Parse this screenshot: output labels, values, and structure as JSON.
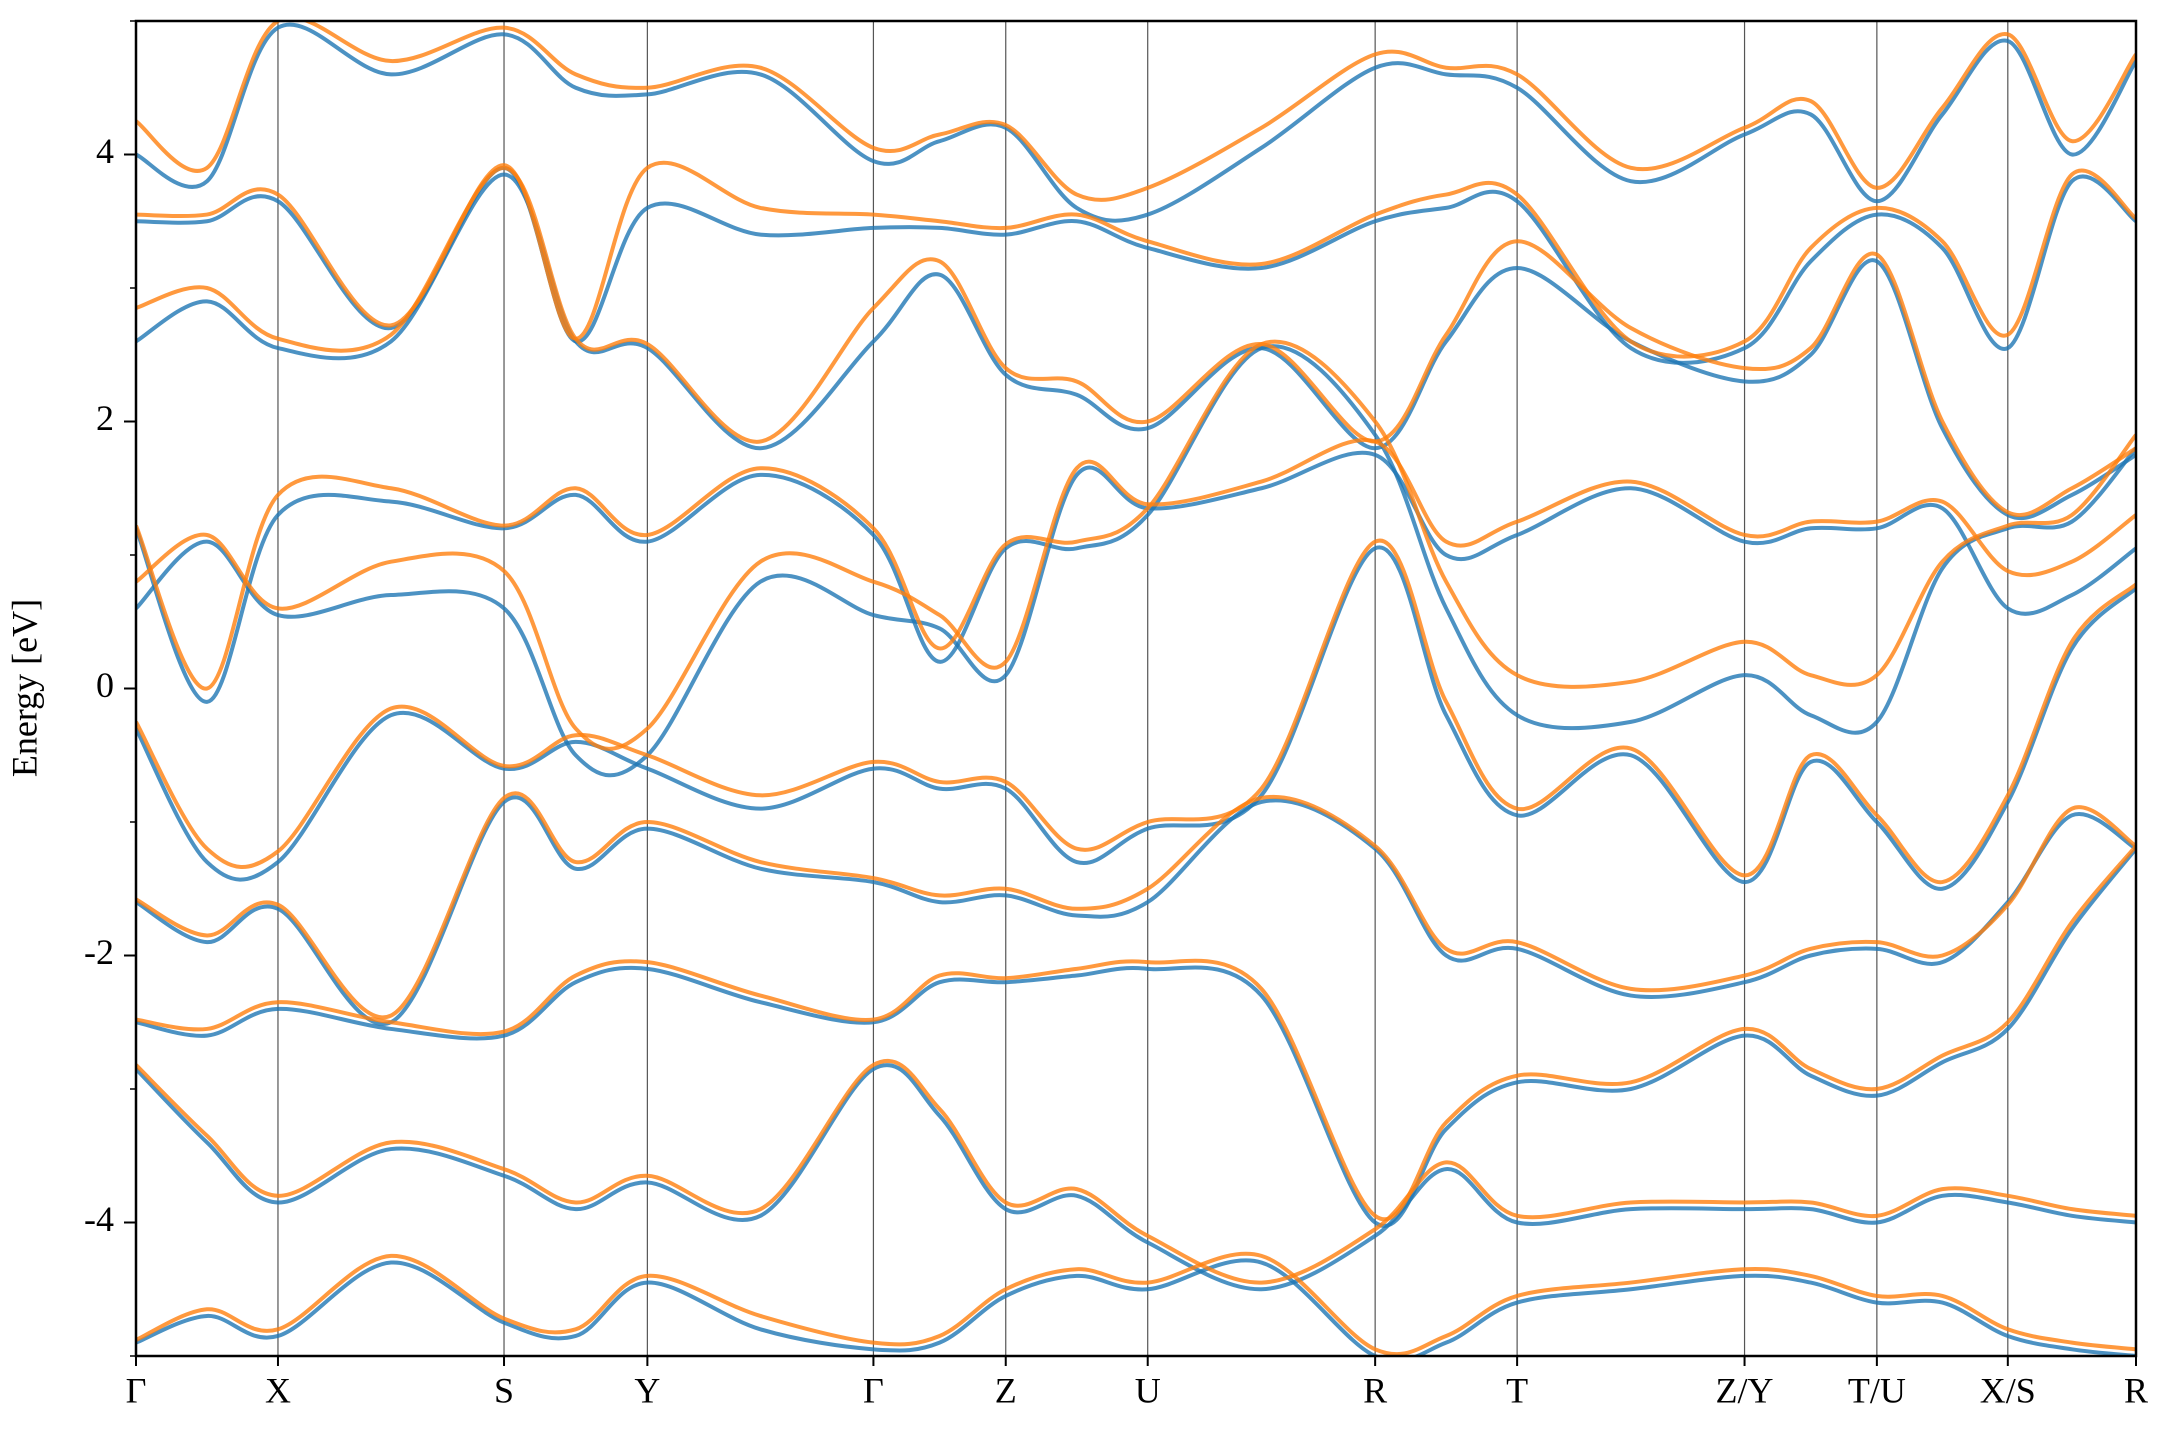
{
  "chart_data": {
    "type": "line",
    "ylabel": "Energy [eV]",
    "x": [
      0,
      0.515,
      1.03,
      1.85,
      2.67,
      3.19,
      3.71,
      4.53,
      5.35,
      5.83,
      6.31,
      6.825,
      7.34,
      8.165,
      8.99,
      9.505,
      10.02,
      10.845,
      11.67,
      12.15,
      12.63,
      13.105,
      13.58,
      14.045,
      14.51
    ],
    "xlim": [
      0,
      14.51
    ],
    "xticks": [
      {
        "value": 0,
        "label": "Γ"
      },
      {
        "value": 1.03,
        "label": "X"
      },
      {
        "value": 2.67,
        "label": "S"
      },
      {
        "value": 3.71,
        "label": "Y"
      },
      {
        "value": 5.35,
        "label": "Γ"
      },
      {
        "value": 6.31,
        "label": "Z"
      },
      {
        "value": 7.34,
        "label": "U"
      },
      {
        "value": 8.99,
        "label": "R"
      },
      {
        "value": 10.02,
        "label": "T"
      },
      {
        "value": 11.67,
        "label": "Z/Y"
      },
      {
        "value": 12.63,
        "label": "T/U"
      },
      {
        "value": 13.58,
        "label": "X/S"
      },
      {
        "value": 14.51,
        "label": "R"
      }
    ],
    "ylim": [
      -5,
      5
    ],
    "yticks": [
      -4,
      -2,
      0,
      2,
      4
    ],
    "yticks_minor": [
      -5,
      -3,
      -1,
      1,
      3,
      5
    ],
    "grid": "x",
    "series": [
      {
        "color": "#1f77b4",
        "values": [
          -4.9,
          -4.7,
          -4.85,
          -4.3,
          -4.75,
          -4.85,
          -4.45,
          -4.8,
          -4.95,
          -4.9,
          -4.55,
          -4.4,
          -4.5,
          -4.3,
          -5.0,
          -4.9,
          -4.6,
          -4.5,
          -4.4,
          -4.45,
          -4.6,
          -4.6,
          -4.85,
          -4.95,
          -5.0
        ]
      },
      {
        "color": "#1f77b4",
        "values": [
          -2.85,
          -3.4,
          -3.85,
          -3.45,
          -3.65,
          -3.9,
          -3.7,
          -3.95,
          -2.85,
          -3.2,
          -3.9,
          -3.8,
          -4.15,
          -4.5,
          -4.1,
          -3.6,
          -4.0,
          -3.9,
          -3.9,
          -3.9,
          -4.0,
          -3.8,
          -3.85,
          -3.95,
          -4.0
        ]
      },
      {
        "color": "#1f77b4",
        "values": [
          -2.5,
          -2.6,
          -2.4,
          -2.55,
          -2.6,
          -2.2,
          -2.1,
          -2.35,
          -2.5,
          -2.2,
          -2.2,
          -2.15,
          -2.1,
          -2.3,
          -4.0,
          -3.3,
          -2.95,
          -3.0,
          -2.6,
          -2.9,
          -3.05,
          -2.8,
          -2.55,
          -1.8,
          -1.2
        ]
      },
      {
        "color": "#1f77b4",
        "values": [
          -1.6,
          -1.9,
          -1.65,
          -2.5,
          -0.85,
          -1.35,
          -1.05,
          -1.35,
          -1.45,
          -1.6,
          -1.55,
          -1.7,
          -1.6,
          -0.85,
          -1.2,
          -2.0,
          -1.95,
          -2.3,
          -2.2,
          -2.0,
          -1.95,
          -2.05,
          -1.6,
          -0.95,
          -1.2
        ]
      },
      {
        "color": "#1f77b4",
        "values": [
          -0.3,
          -1.3,
          -1.3,
          -0.2,
          -0.6,
          -0.4,
          -0.6,
          -0.9,
          -0.6,
          -0.75,
          -0.75,
          -1.3,
          -1.05,
          -0.8,
          1.05,
          -0.2,
          -0.95,
          -0.5,
          -1.45,
          -0.55,
          -1.0,
          -1.5,
          -0.85,
          0.3,
          0.75
        ]
      },
      {
        "color": "#1f77b4",
        "values": [
          0.6,
          1.1,
          0.55,
          0.7,
          0.6,
          -0.5,
          -0.5,
          0.8,
          0.55,
          0.45,
          0.1,
          1.6,
          1.35,
          1.5,
          1.75,
          1.0,
          1.15,
          1.5,
          1.1,
          1.2,
          1.2,
          1.35,
          0.6,
          0.7,
          1.05
        ]
      },
      {
        "color": "#1f77b4",
        "values": [
          1.2,
          -0.1,
          1.3,
          1.4,
          1.2,
          1.45,
          1.1,
          1.6,
          1.15,
          0.2,
          1.05,
          1.05,
          1.3,
          2.55,
          1.9,
          0.6,
          -0.2,
          -0.25,
          0.1,
          -0.2,
          -0.25,
          0.9,
          1.2,
          1.25,
          1.8
        ]
      },
      {
        "color": "#1f77b4",
        "values": [
          2.6,
          2.9,
          2.55,
          2.6,
          3.85,
          2.6,
          2.55,
          1.8,
          2.6,
          3.1,
          2.35,
          2.2,
          1.95,
          2.55,
          1.8,
          2.6,
          3.15,
          2.6,
          2.3,
          2.5,
          3.2,
          1.95,
          1.3,
          1.45,
          1.75
        ]
      },
      {
        "color": "#1f77b4",
        "values": [
          3.5,
          3.5,
          3.65,
          2.7,
          3.9,
          2.6,
          3.6,
          3.4,
          3.45,
          3.45,
          3.4,
          3.5,
          3.3,
          3.15,
          3.5,
          3.6,
          3.65,
          2.55,
          2.55,
          3.2,
          3.55,
          3.3,
          2.55,
          3.8,
          3.5
        ]
      },
      {
        "color": "#1f77b4",
        "values": [
          4.0,
          3.8,
          4.95,
          4.6,
          4.9,
          4.5,
          4.45,
          4.6,
          3.95,
          4.1,
          4.2,
          3.6,
          3.55,
          4.05,
          4.65,
          4.6,
          4.5,
          3.8,
          4.15,
          4.3,
          3.65,
          4.3,
          4.85,
          4.0,
          4.7
        ]
      },
      {
        "color": "#ff7f0e",
        "values": [
          -4.88,
          -4.65,
          -4.8,
          -4.25,
          -4.72,
          -4.8,
          -4.4,
          -4.7,
          -4.9,
          -4.85,
          -4.5,
          -4.35,
          -4.45,
          -4.25,
          -4.95,
          -4.85,
          -4.55,
          -4.45,
          -4.35,
          -4.4,
          -4.55,
          -4.55,
          -4.8,
          -4.9,
          -4.95
        ]
      },
      {
        "color": "#ff7f0e",
        "values": [
          -2.82,
          -3.35,
          -3.8,
          -3.4,
          -3.6,
          -3.85,
          -3.65,
          -3.9,
          -2.82,
          -3.15,
          -3.85,
          -3.75,
          -4.1,
          -4.45,
          -4.05,
          -3.55,
          -3.95,
          -3.85,
          -3.85,
          -3.85,
          -3.95,
          -3.75,
          -3.8,
          -3.9,
          -3.95
        ]
      },
      {
        "color": "#ff7f0e",
        "values": [
          -2.48,
          -2.55,
          -2.35,
          -2.5,
          -2.57,
          -2.15,
          -2.05,
          -2.3,
          -2.48,
          -2.15,
          -2.17,
          -2.1,
          -2.05,
          -2.25,
          -3.95,
          -3.25,
          -2.9,
          -2.95,
          -2.55,
          -2.85,
          -3.0,
          -2.75,
          -2.5,
          -1.75,
          -1.18
        ]
      },
      {
        "color": "#ff7f0e",
        "values": [
          -1.58,
          -1.85,
          -1.62,
          -2.45,
          -0.82,
          -1.3,
          -1.0,
          -1.3,
          -1.42,
          -1.55,
          -1.5,
          -1.65,
          -1.5,
          -0.82,
          -1.18,
          -1.95,
          -1.9,
          -2.25,
          -2.15,
          -1.95,
          -1.9,
          -2.0,
          -1.62,
          -0.9,
          -1.18
        ]
      },
      {
        "color": "#ff7f0e",
        "values": [
          -0.25,
          -1.2,
          -1.22,
          -0.15,
          -0.58,
          -0.35,
          -0.5,
          -0.8,
          -0.55,
          -0.7,
          -0.7,
          -1.2,
          -1.0,
          -0.75,
          1.1,
          -0.1,
          -0.9,
          -0.45,
          -1.4,
          -0.5,
          -0.95,
          -1.45,
          -0.8,
          0.35,
          0.78
        ]
      },
      {
        "color": "#ff7f0e",
        "values": [
          0.8,
          1.15,
          0.6,
          0.95,
          0.88,
          -0.3,
          -0.3,
          0.95,
          0.8,
          0.55,
          0.2,
          1.65,
          1.38,
          1.55,
          1.85,
          1.1,
          1.25,
          1.55,
          1.15,
          1.25,
          1.25,
          1.4,
          0.88,
          0.95,
          1.3
        ]
      },
      {
        "color": "#ff7f0e",
        "values": [
          1.22,
          0.0,
          1.45,
          1.5,
          1.22,
          1.5,
          1.15,
          1.65,
          1.2,
          0.3,
          1.08,
          1.1,
          1.35,
          2.58,
          2.0,
          0.8,
          0.1,
          0.05,
          0.35,
          0.1,
          0.1,
          0.95,
          1.22,
          1.3,
          1.9
        ]
      },
      {
        "color": "#ff7f0e",
        "values": [
          2.85,
          3.0,
          2.62,
          2.65,
          3.9,
          2.62,
          2.58,
          1.85,
          2.85,
          3.2,
          2.4,
          2.3,
          2.0,
          2.58,
          1.85,
          2.65,
          3.35,
          2.7,
          2.4,
          2.55,
          3.25,
          2.0,
          1.32,
          1.5,
          1.8
        ]
      },
      {
        "color": "#ff7f0e",
        "values": [
          3.55,
          3.55,
          3.7,
          2.72,
          3.92,
          2.62,
          3.9,
          3.6,
          3.55,
          3.5,
          3.45,
          3.55,
          3.35,
          3.18,
          3.55,
          3.7,
          3.7,
          2.6,
          2.6,
          3.3,
          3.6,
          3.35,
          2.65,
          3.85,
          3.52
        ]
      },
      {
        "color": "#ff7f0e",
        "values": [
          4.25,
          3.9,
          5.0,
          4.7,
          4.95,
          4.6,
          4.5,
          4.65,
          4.05,
          4.15,
          4.22,
          3.7,
          3.75,
          4.2,
          4.75,
          4.65,
          4.6,
          3.9,
          4.2,
          4.4,
          3.75,
          4.35,
          4.9,
          4.1,
          4.75
        ]
      }
    ]
  }
}
